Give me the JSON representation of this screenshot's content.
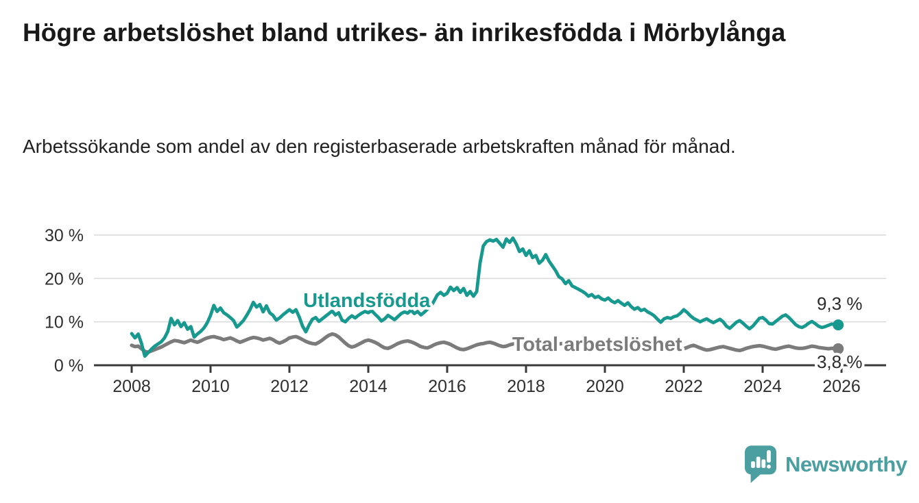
{
  "header": {
    "title": "Högre arbetslöshet bland utrikes- än inrikesfödda i Mörbylånga",
    "subtitle": "Arbetssökande som andel av den registerbaserade arbetskraften månad för månad."
  },
  "footer": {
    "brand": "Newsworthy"
  },
  "chart_data": {
    "type": "line",
    "title": "Högre arbetslöshet bland utrikes- än inrikesfödda i Mörbylånga",
    "subtitle": "Arbetssökande som andel av den registerbaserade arbetskraften månad för månad.",
    "frequency": "monthly",
    "x_start": "2008-01",
    "x_end": "2025-12",
    "xlim": [
      2007.1,
      2027.2
    ],
    "ylim": [
      0,
      31
    ],
    "grid": "horizontal",
    "legend_position": "inline-labels",
    "x_ticks": [
      2008,
      2010,
      2012,
      2014,
      2016,
      2018,
      2020,
      2022,
      2024,
      2026
    ],
    "y_ticks": [
      {
        "label": "30 %",
        "value": 30
      },
      {
        "label": "20 %",
        "value": 20
      },
      {
        "label": "10 %",
        "value": 10
      },
      {
        "label": "0 %",
        "value": 0
      }
    ],
    "colors": {
      "grid": "#d9d9d9",
      "axis": "#3a3a3a"
    },
    "series": [
      {
        "id": "utlandsfodda",
        "name": "Utlandsfödda",
        "color": "#17998f",
        "width": 4.8,
        "inline_label": {
          "year": 2012.35,
          "value": 13.4
        },
        "end_label": {
          "text": "9,3 %",
          "dx": 2,
          "dy": -22
        },
        "end_value": 9.3,
        "values": [
          7.3,
          6.3,
          7.2,
          5.0,
          2.1,
          2.9,
          3.7,
          4.4,
          4.9,
          5.4,
          6.3,
          7.8,
          10.8,
          9.3,
          10.3,
          8.9,
          9.8,
          8.3,
          8.9,
          6.5,
          7.2,
          7.8,
          8.6,
          9.8,
          11.5,
          13.8,
          12.4,
          13.2,
          12.1,
          11.6,
          11.0,
          10.3,
          8.8,
          9.5,
          10.3,
          11.5,
          12.8,
          14.5,
          13.4,
          14.0,
          12.3,
          13.7,
          12.1,
          11.5,
          10.4,
          10.9,
          11.6,
          12.2,
          12.8,
          12.2,
          12.8,
          11.1,
          9.0,
          7.7,
          9.3,
          10.6,
          11.0,
          10.1,
          10.7,
          11.3,
          11.9,
          12.5,
          11.6,
          12.1,
          10.4,
          10.0,
          10.8,
          11.4,
          10.9,
          11.5,
          12.0,
          12.4,
          12.1,
          12.6,
          11.8,
          11.1,
          10.2,
          10.7,
          11.5,
          11.0,
          10.5,
          11.2,
          11.9,
          12.3,
          12.0,
          12.7,
          11.9,
          12.4,
          11.6,
          12.2,
          12.9,
          13.5,
          14.8,
          16.2,
          16.8,
          16.1,
          16.6,
          18.0,
          17.2,
          17.9,
          16.8,
          17.7,
          16.1,
          17.0,
          15.9,
          17.0,
          23.5,
          27.5,
          28.5,
          28.9,
          28.6,
          29.0,
          28.1,
          27.2,
          29.1,
          28.3,
          29.3,
          28.0,
          26.2,
          26.8,
          25.3,
          26.4,
          24.8,
          25.3,
          23.5,
          24.2,
          25.5,
          24.0,
          22.9,
          21.8,
          20.4,
          19.9,
          18.8,
          19.5,
          18.3,
          17.9,
          17.5,
          17.1,
          16.6,
          15.9,
          16.3,
          15.6,
          15.9,
          15.3,
          15.0,
          15.5,
          14.8,
          14.4,
          14.9,
          14.3,
          13.8,
          14.4,
          13.5,
          12.9,
          13.3,
          12.6,
          12.9,
          12.3,
          11.9,
          11.4,
          10.6,
          9.9,
          10.7,
          11.0,
          10.8,
          11.2,
          11.4,
          12.0,
          12.8,
          12.2,
          11.4,
          10.8,
          10.4,
          10.0,
          10.4,
          10.7,
          10.2,
          9.8,
          10.2,
          10.6,
          10.0,
          9.0,
          8.5,
          9.2,
          9.9,
          10.3,
          9.7,
          9.0,
          8.4,
          9.0,
          9.9,
          10.8,
          11.0,
          10.4,
          9.6,
          9.5,
          10.1,
          10.7,
          11.3,
          11.6,
          11.0,
          10.2,
          9.4,
          8.9,
          8.7,
          9.1,
          9.7,
          10.1,
          9.6,
          9.0,
          8.7,
          8.9,
          9.2,
          9.5,
          9.4,
          9.3
        ]
      },
      {
        "id": "total-arbetsloshet",
        "name": "Total arbetslöshet",
        "color": "#7b7b7b",
        "width": 5.2,
        "inline_label": {
          "year": 2017.65,
          "value": 3.3
        },
        "end_label": {
          "text": "3,8 %",
          "dx": 2,
          "dy": 28
        },
        "end_value": 3.8,
        "values": [
          4.6,
          4.3,
          4.4,
          3.8,
          3.2,
          3.0,
          3.3,
          3.6,
          3.9,
          4.2,
          4.6,
          5.0,
          5.4,
          5.7,
          5.6,
          5.4,
          5.2,
          5.5,
          5.8,
          5.5,
          5.3,
          5.6,
          6.0,
          6.3,
          6.5,
          6.6,
          6.4,
          6.2,
          5.9,
          6.1,
          6.3,
          6.0,
          5.6,
          5.3,
          5.6,
          5.9,
          6.2,
          6.4,
          6.3,
          6.1,
          5.8,
          6.0,
          6.2,
          5.9,
          5.4,
          5.1,
          5.4,
          5.8,
          6.3,
          6.5,
          6.6,
          6.3,
          5.9,
          5.5,
          5.2,
          5.0,
          4.9,
          5.3,
          5.8,
          6.4,
          6.9,
          7.2,
          7.0,
          6.5,
          5.8,
          5.1,
          4.5,
          4.2,
          4.4,
          4.8,
          5.2,
          5.6,
          5.8,
          5.6,
          5.3,
          4.9,
          4.4,
          4.0,
          3.9,
          4.2,
          4.6,
          5.0,
          5.3,
          5.5,
          5.6,
          5.4,
          5.1,
          4.7,
          4.3,
          4.1,
          4.0,
          4.3,
          4.7,
          5.0,
          5.2,
          5.3,
          5.1,
          4.8,
          4.4,
          4.0,
          3.7,
          3.6,
          3.8,
          4.1,
          4.4,
          4.7,
          4.9,
          5.0,
          5.2,
          5.3,
          5.1,
          4.8,
          4.5,
          4.3,
          4.4,
          4.7,
          4.9,
          5.1,
          5.2,
          5.3,
          5.2,
          5.0,
          4.8,
          4.5,
          4.2,
          4.0,
          4.1,
          4.4,
          4.6,
          4.8,
          4.9,
          5.0,
          4.9,
          4.7,
          4.5,
          4.3,
          4.1,
          4.0,
          4.1,
          4.3,
          4.5,
          4.7,
          4.8,
          4.9,
          4.8,
          4.6,
          4.4,
          4.2,
          4.0,
          3.9,
          4.0,
          4.2,
          4.4,
          4.3,
          4.1,
          4.0,
          3.9,
          3.7,
          3.6,
          3.8,
          4.0,
          4.2,
          4.4,
          4.2,
          3.9,
          3.6,
          3.4,
          3.5,
          3.8,
          4.1,
          4.4,
          4.6,
          4.3,
          4.0,
          3.7,
          3.5,
          3.6,
          3.8,
          4.0,
          4.2,
          4.3,
          4.1,
          3.9,
          3.7,
          3.5,
          3.4,
          3.6,
          3.9,
          4.1,
          4.3,
          4.4,
          4.5,
          4.4,
          4.2,
          4.0,
          3.8,
          3.7,
          3.9,
          4.1,
          4.3,
          4.4,
          4.2,
          4.0,
          3.9,
          3.9,
          4.0,
          4.2,
          4.4,
          4.3,
          4.1,
          4.0,
          3.9,
          3.8,
          3.9,
          3.9,
          3.8
        ]
      }
    ]
  }
}
